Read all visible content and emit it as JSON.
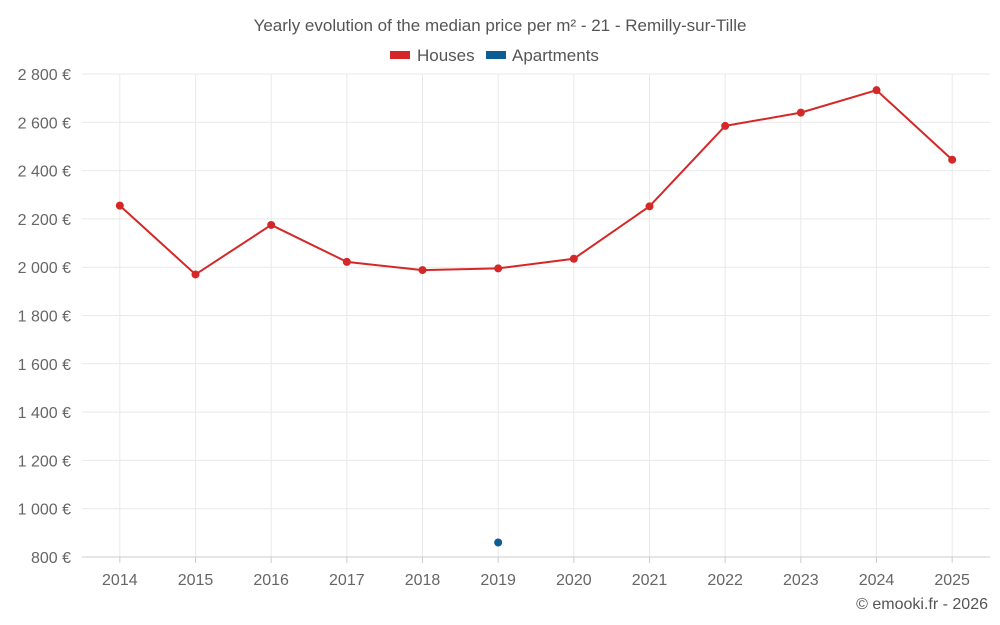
{
  "chart_data": {
    "type": "line",
    "title": "Yearly evolution of the median price per m² - 21 - Remilly-sur-Tille",
    "categories": [
      "2014",
      "2015",
      "2016",
      "2017",
      "2018",
      "2019",
      "2020",
      "2021",
      "2022",
      "2023",
      "2024",
      "2025"
    ],
    "series": [
      {
        "name": "Houses",
        "color": "#d62728",
        "values": [
          2255,
          1970,
          2175,
          2022,
          1988,
          1995,
          2035,
          2252,
          2585,
          2640,
          2733,
          2445
        ]
      },
      {
        "name": "Apartments",
        "color": "#0b5d94",
        "values": [
          null,
          null,
          null,
          null,
          null,
          860,
          null,
          null,
          null,
          null,
          null,
          null
        ]
      }
    ],
    "ylim": [
      800,
      2800
    ],
    "yticks": [
      800,
      1000,
      1200,
      1400,
      1600,
      1800,
      2000,
      2200,
      2400,
      2600,
      2800
    ],
    "ytick_labels": [
      "800 €",
      "1 000 €",
      "1 200 €",
      "1 400 €",
      "1 600 €",
      "1 800 €",
      "2 000 €",
      "2 200 €",
      "2 400 €",
      "2 600 €",
      "2 800 €"
    ],
    "xlabel": "",
    "ylabel": "",
    "grid": true,
    "legend_position": "top-center"
  },
  "copyright": "© emooki.fr - 2026"
}
